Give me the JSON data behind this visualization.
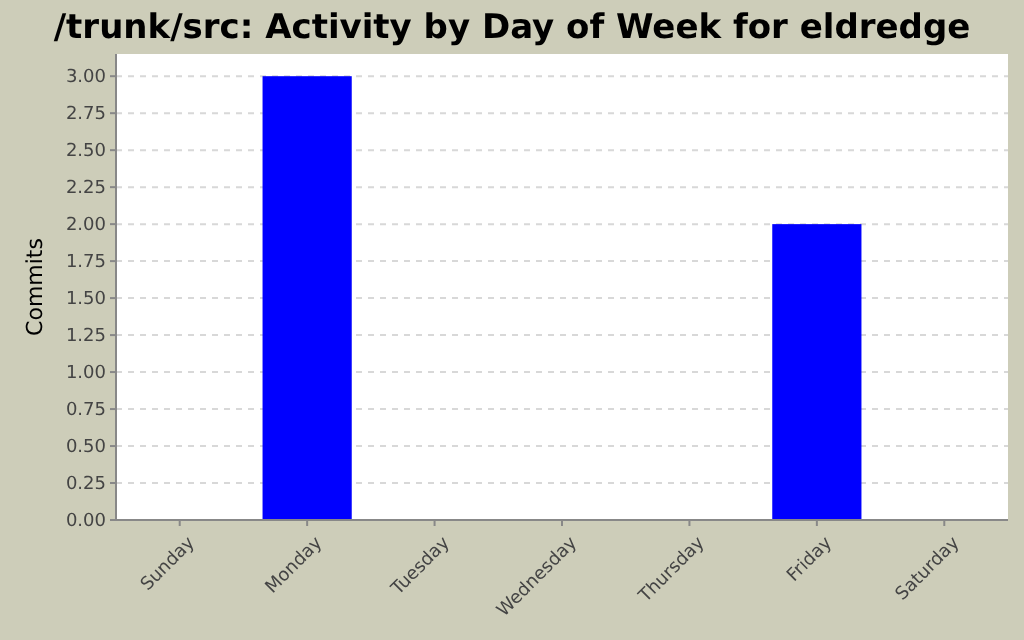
{
  "chart_data": {
    "type": "bar",
    "title": "/trunk/src: Activity by Day of Week for eldredge",
    "ylabel": "Commits",
    "categories": [
      "Sunday",
      "Monday",
      "Tuesday",
      "Wednesday",
      "Thursday",
      "Friday",
      "Saturday"
    ],
    "values": [
      0,
      3,
      0,
      0,
      0,
      2,
      0
    ],
    "color": "#0000ff",
    "ylim": [
      0,
      3.15
    ],
    "yticks": [
      {
        "value": 0,
        "label": "0.00"
      },
      {
        "value": 0.25,
        "label": "0.25"
      },
      {
        "value": 0.5,
        "label": "0.50"
      },
      {
        "value": 0.75,
        "label": "0.75"
      },
      {
        "value": 1,
        "label": "1.00"
      },
      {
        "value": 1.25,
        "label": "1.25"
      },
      {
        "value": 1.5,
        "label": "1.50"
      },
      {
        "value": 1.75,
        "label": "1.75"
      },
      {
        "value": 2,
        "label": "2.00"
      },
      {
        "value": 2.25,
        "label": "2.25"
      },
      {
        "value": 2.5,
        "label": "2.50"
      },
      {
        "value": 2.75,
        "label": "2.75"
      },
      {
        "value": 3,
        "label": "3.00"
      }
    ],
    "grid": "y"
  }
}
